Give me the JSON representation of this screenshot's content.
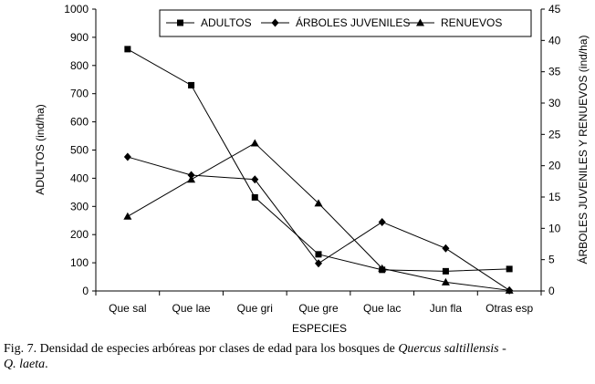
{
  "chart_data": {
    "type": "line",
    "categories": [
      "Que sal",
      "Que lae",
      "Que gri",
      "Que gre",
      "Que lac",
      "Jun fla",
      "Otras esp"
    ],
    "xlabel": "ESPECIES",
    "ylabel": "ADULTOS (ind/ha)",
    "y2label": "ÁRBOLES JUVENILES Y RENUEVOS (ind/ha)",
    "ylim": [
      0,
      1000
    ],
    "y2lim": [
      0,
      45
    ],
    "yticks": [
      "0",
      "100",
      "200",
      "300",
      "400",
      "500",
      "600",
      "700",
      "800",
      "900",
      "1000"
    ],
    "y2ticks": [
      "0",
      "5",
      "10",
      "15",
      "20",
      "25",
      "30",
      "35",
      "40",
      "45"
    ],
    "legend_position": "top-right",
    "series": [
      {
        "name": "ADULTOS",
        "axis": "left",
        "marker": "square",
        "values": [
          858,
          730,
          332,
          130,
          75,
          70,
          78
        ]
      },
      {
        "name": "ÁRBOLES JUVENILES",
        "axis": "right",
        "marker": "diamond",
        "values": [
          21.4,
          18.5,
          17.8,
          4.4,
          11.0,
          6.8,
          0.1
        ]
      },
      {
        "name": "RENUEVOS",
        "axis": "right",
        "marker": "triangle",
        "values": [
          11.9,
          17.8,
          23.6,
          14.0,
          3.6,
          1.4,
          0.1
        ]
      }
    ]
  },
  "caption": {
    "prefix": "Fig. 7. Densidad de especies arbóreas por clases de edad para los bosques de",
    "species1": "Quercus saltillensis",
    "separator": " - ",
    "species2": "Q. laeta",
    "suffix": "."
  }
}
